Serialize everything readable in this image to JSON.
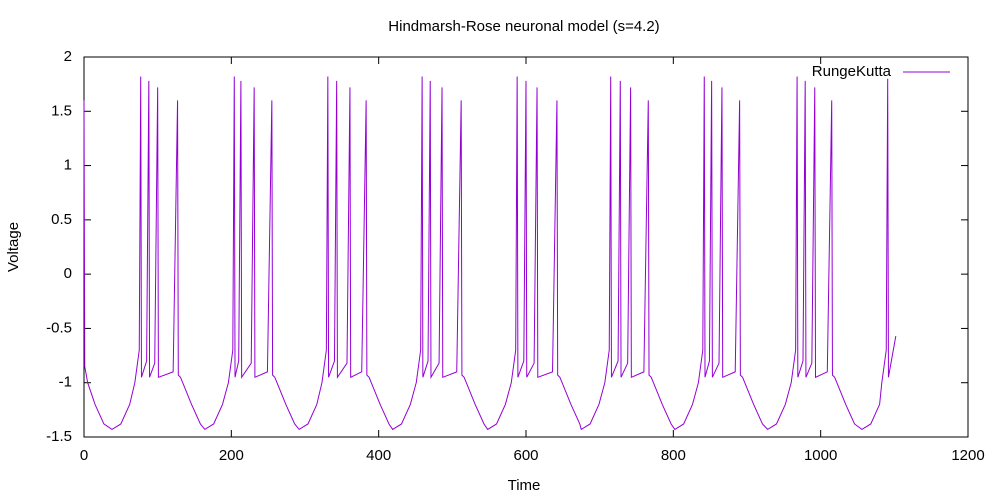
{
  "chart_data": {
    "type": "line",
    "title": "Hindmarsh-Rose neuronal model (s=4.2)",
    "x_label": "Time",
    "y_label": "Voltage",
    "xlim": [
      0,
      1200
    ],
    "ylim": [
      -1.5,
      2
    ],
    "xticks": [
      0,
      200,
      400,
      600,
      800,
      1000,
      1200
    ],
    "yticks": [
      -1.5,
      -1,
      -0.5,
      0,
      0.5,
      1,
      1.5,
      2
    ],
    "grid": false,
    "legend": "top-right",
    "x": [
      0,
      1,
      5,
      15,
      27,
      38,
      50,
      62,
      69,
      75,
      77,
      78,
      85,
      88,
      89,
      96,
      100,
      101,
      121,
      127,
      128,
      131,
      134,
      146,
      158,
      164,
      176,
      188,
      196,
      202,
      204,
      205,
      210,
      213,
      214,
      227,
      231,
      232,
      249,
      255,
      256,
      259,
      262,
      274,
      286,
      292,
      304,
      316,
      323,
      329,
      331,
      332,
      340,
      343,
      344,
      357,
      361,
      362,
      377,
      383,
      384,
      387,
      390,
      402,
      414,
      419,
      431,
      443,
      451,
      457,
      459,
      460,
      467,
      470,
      471,
      482,
      486,
      487,
      506,
      512,
      513,
      516,
      519,
      531,
      543,
      548,
      560,
      572,
      580,
      586,
      588,
      589,
      597,
      600,
      601,
      611,
      615,
      616,
      636,
      642,
      643,
      646,
      649,
      661,
      673,
      675,
      687,
      699,
      707,
      713,
      715,
      716,
      725,
      728,
      729,
      738,
      742,
      743,
      760,
      766,
      767,
      770,
      773,
      785,
      797,
      802,
      814,
      826,
      834,
      840,
      842,
      843,
      849,
      852,
      853,
      862,
      866,
      867,
      884,
      890,
      891,
      894,
      897,
      909,
      921,
      928,
      940,
      952,
      960,
      966,
      968,
      969,
      976,
      979,
      980,
      988,
      992,
      993,
      1009,
      1015,
      1016,
      1019,
      1022,
      1034,
      1046,
      1056,
      1068,
      1080,
      1083,
      1089,
      1091,
      1092,
      1102
    ],
    "series": [
      {
        "name": "RungeKutta",
        "color": "#9400d3",
        "values": [
          1.6,
          -0.85,
          -1.0,
          -1.2,
          -1.38,
          -1.43,
          -1.38,
          -1.2,
          -1.0,
          -0.7,
          1.82,
          -0.95,
          -0.8,
          1.78,
          -0.95,
          -0.82,
          1.72,
          -0.95,
          -0.9,
          1.6,
          -0.93,
          -0.95,
          -1.0,
          -1.2,
          -1.38,
          -1.43,
          -1.38,
          -1.2,
          -1.0,
          -0.7,
          1.82,
          -0.95,
          -0.8,
          1.78,
          -0.95,
          -0.82,
          1.72,
          -0.95,
          -0.9,
          1.6,
          -0.93,
          -0.95,
          -1.0,
          -1.2,
          -1.38,
          -1.43,
          -1.38,
          -1.2,
          -1.0,
          -0.7,
          1.82,
          -0.95,
          -0.8,
          1.78,
          -0.95,
          -0.82,
          1.72,
          -0.95,
          -0.9,
          1.6,
          -0.93,
          -0.95,
          -1.0,
          -1.2,
          -1.38,
          -1.43,
          -1.38,
          -1.2,
          -1.0,
          -0.7,
          1.82,
          -0.95,
          -0.8,
          1.78,
          -0.95,
          -0.82,
          1.72,
          -0.95,
          -0.9,
          1.6,
          -0.93,
          -0.95,
          -1.0,
          -1.2,
          -1.38,
          -1.43,
          -1.38,
          -1.2,
          -1.0,
          -0.7,
          1.82,
          -0.95,
          -0.8,
          1.78,
          -0.95,
          -0.82,
          1.72,
          -0.95,
          -0.9,
          1.6,
          -0.93,
          -0.95,
          -1.0,
          -1.2,
          -1.38,
          -1.43,
          -1.38,
          -1.2,
          -1.0,
          -0.7,
          1.82,
          -0.95,
          -0.8,
          1.78,
          -0.95,
          -0.82,
          1.72,
          -0.95,
          -0.9,
          1.6,
          -0.93,
          -0.95,
          -1.0,
          -1.2,
          -1.38,
          -1.43,
          -1.38,
          -1.2,
          -1.0,
          -0.7,
          1.82,
          -0.95,
          -0.8,
          1.78,
          -0.95,
          -0.82,
          1.72,
          -0.95,
          -0.9,
          1.6,
          -0.93,
          -0.95,
          -1.0,
          -1.2,
          -1.38,
          -1.43,
          -1.38,
          -1.2,
          -1.0,
          -0.7,
          1.82,
          -0.95,
          -0.8,
          1.78,
          -0.95,
          -0.82,
          1.72,
          -0.95,
          -0.9,
          1.6,
          -0.93,
          -0.95,
          -1.0,
          -1.2,
          -1.38,
          -1.43,
          -1.38,
          -1.2,
          -1.0,
          -0.7,
          1.8,
          -0.95,
          -0.57
        ]
      }
    ]
  }
}
